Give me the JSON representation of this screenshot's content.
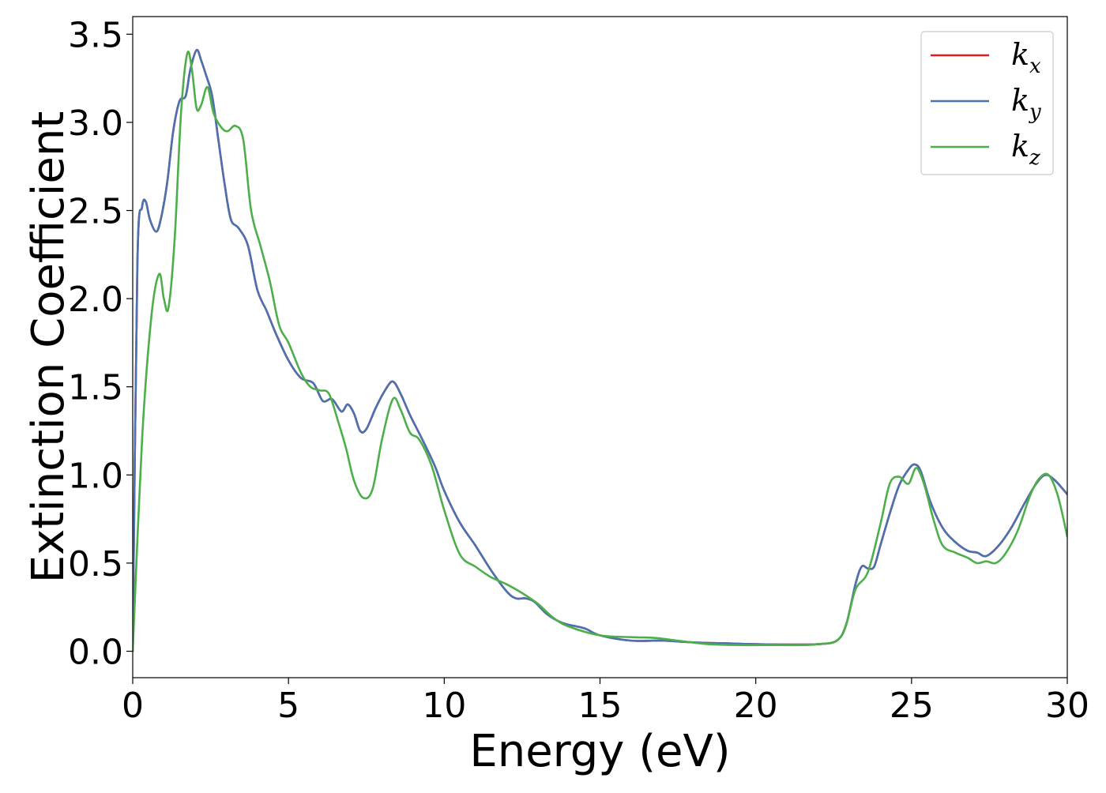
{
  "chart_data": {
    "type": "line",
    "xlabel": "Energy (eV)",
    "ylabel": "Extinction Coefficient",
    "xlim": [
      0,
      30
    ],
    "ylim": [
      -0.15,
      3.6
    ],
    "xticks": [
      0,
      5,
      10,
      15,
      20,
      25,
      30
    ],
    "xtick_labels": [
      "0",
      "5",
      "10",
      "15",
      "20",
      "25",
      "30"
    ],
    "yticks": [
      0.0,
      0.5,
      1.0,
      1.5,
      2.0,
      2.5,
      3.0,
      3.5
    ],
    "ytick_labels": [
      "0.0",
      "0.5",
      "1.0",
      "1.5",
      "2.0",
      "2.5",
      "3.0",
      "3.5"
    ],
    "grid": false,
    "legend_position": "top-right",
    "series": [
      {
        "name": "k",
        "subscript": "x",
        "color": "#e41a1c",
        "x": [
          0,
          0.15,
          0.3,
          0.42,
          0.55,
          0.75,
          0.9,
          1.1,
          1.3,
          1.5,
          1.7,
          1.85,
          2.05,
          2.2,
          2.35,
          2.55,
          2.75,
          2.95,
          3.15,
          3.4,
          3.7,
          4.0,
          4.3,
          4.6,
          5.0,
          5.4,
          5.8,
          6.1,
          6.4,
          6.7,
          6.9,
          7.1,
          7.3,
          7.5,
          7.8,
          8.1,
          8.35,
          8.6,
          8.9,
          9.3,
          9.7,
          10.0,
          10.5,
          11.0,
          11.5,
          12.0,
          12.3,
          12.6,
          12.9,
          13.3,
          13.8,
          14.5,
          15.0,
          16.0,
          17.0,
          18.0,
          19.0,
          20.0,
          21.0,
          22.0,
          22.6,
          22.9,
          23.2,
          23.4,
          23.6,
          23.8,
          24.0,
          24.3,
          24.6,
          24.9,
          25.1,
          25.3,
          25.6,
          26.0,
          26.4,
          26.8,
          27.1,
          27.4,
          27.8,
          28.2,
          28.6,
          29.0,
          29.3,
          29.6,
          30.0
        ],
        "values": [
          0.0,
          2.2,
          2.52,
          2.55,
          2.45,
          2.38,
          2.45,
          2.65,
          2.95,
          3.12,
          3.15,
          3.3,
          3.41,
          3.35,
          3.27,
          3.15,
          2.9,
          2.65,
          2.45,
          2.4,
          2.3,
          2.05,
          1.93,
          1.8,
          1.65,
          1.55,
          1.52,
          1.42,
          1.43,
          1.36,
          1.4,
          1.35,
          1.25,
          1.26,
          1.38,
          1.48,
          1.53,
          1.46,
          1.34,
          1.2,
          1.05,
          0.91,
          0.73,
          0.6,
          0.46,
          0.34,
          0.3,
          0.3,
          0.28,
          0.21,
          0.16,
          0.13,
          0.09,
          0.06,
          0.06,
          0.05,
          0.045,
          0.04,
          0.038,
          0.04,
          0.06,
          0.15,
          0.38,
          0.48,
          0.47,
          0.48,
          0.6,
          0.78,
          0.94,
          1.03,
          1.06,
          1.02,
          0.85,
          0.7,
          0.62,
          0.57,
          0.56,
          0.54,
          0.6,
          0.7,
          0.83,
          0.95,
          1.0,
          0.97,
          0.89
        ]
      },
      {
        "name": "k",
        "subscript": "y",
        "color": "#4a72b0",
        "x": [
          0,
          0.15,
          0.3,
          0.42,
          0.55,
          0.75,
          0.9,
          1.1,
          1.3,
          1.5,
          1.7,
          1.85,
          2.05,
          2.2,
          2.35,
          2.55,
          2.75,
          2.95,
          3.15,
          3.4,
          3.7,
          4.0,
          4.3,
          4.6,
          5.0,
          5.4,
          5.8,
          6.1,
          6.4,
          6.7,
          6.9,
          7.1,
          7.3,
          7.5,
          7.8,
          8.1,
          8.35,
          8.6,
          8.9,
          9.3,
          9.7,
          10.0,
          10.5,
          11.0,
          11.5,
          12.0,
          12.3,
          12.6,
          12.9,
          13.3,
          13.8,
          14.5,
          15.0,
          16.0,
          17.0,
          18.0,
          19.0,
          20.0,
          21.0,
          22.0,
          22.6,
          22.9,
          23.2,
          23.4,
          23.6,
          23.8,
          24.0,
          24.3,
          24.6,
          24.9,
          25.1,
          25.3,
          25.6,
          26.0,
          26.4,
          26.8,
          27.1,
          27.4,
          27.8,
          28.2,
          28.6,
          29.0,
          29.3,
          29.6,
          30.0
        ],
        "values": [
          0.0,
          2.2,
          2.52,
          2.55,
          2.45,
          2.38,
          2.45,
          2.65,
          2.95,
          3.12,
          3.15,
          3.3,
          3.41,
          3.35,
          3.27,
          3.15,
          2.9,
          2.65,
          2.45,
          2.4,
          2.3,
          2.05,
          1.93,
          1.8,
          1.65,
          1.55,
          1.52,
          1.42,
          1.43,
          1.36,
          1.4,
          1.35,
          1.25,
          1.26,
          1.38,
          1.48,
          1.53,
          1.46,
          1.34,
          1.2,
          1.05,
          0.91,
          0.73,
          0.6,
          0.46,
          0.34,
          0.3,
          0.3,
          0.28,
          0.21,
          0.16,
          0.13,
          0.09,
          0.06,
          0.06,
          0.05,
          0.045,
          0.04,
          0.038,
          0.04,
          0.06,
          0.15,
          0.38,
          0.48,
          0.47,
          0.48,
          0.6,
          0.78,
          0.94,
          1.03,
          1.06,
          1.02,
          0.85,
          0.7,
          0.62,
          0.57,
          0.56,
          0.54,
          0.6,
          0.7,
          0.83,
          0.95,
          1.0,
          0.97,
          0.89
        ]
      },
      {
        "name": "k",
        "subscript": "z",
        "color": "#4daf4a",
        "x": [
          0,
          0.3,
          0.6,
          0.85,
          1.0,
          1.15,
          1.35,
          1.55,
          1.75,
          1.9,
          2.05,
          2.2,
          2.4,
          2.6,
          2.85,
          3.05,
          3.3,
          3.55,
          3.8,
          4.1,
          4.4,
          4.7,
          5.0,
          5.4,
          5.7,
          6.0,
          6.3,
          6.6,
          6.85,
          7.1,
          7.4,
          7.7,
          8.0,
          8.35,
          8.6,
          8.9,
          9.2,
          9.6,
          10.0,
          10.5,
          11.0,
          11.5,
          12.0,
          12.5,
          13.0,
          13.5,
          14.0,
          15.0,
          16.0,
          16.8,
          17.5,
          18.5,
          19.5,
          20.5,
          21.5,
          22.0,
          22.6,
          22.9,
          23.2,
          23.6,
          24.0,
          24.3,
          24.6,
          24.9,
          25.15,
          25.4,
          25.7,
          26.0,
          26.4,
          26.8,
          27.1,
          27.4,
          27.7,
          28.0,
          28.4,
          28.8,
          29.1,
          29.4,
          29.7,
          30.0
        ],
        "values": [
          0.0,
          1.2,
          1.9,
          2.14,
          2.0,
          1.95,
          2.35,
          3.05,
          3.39,
          3.3,
          3.08,
          3.1,
          3.2,
          3.05,
          2.97,
          2.95,
          2.98,
          2.9,
          2.5,
          2.3,
          2.1,
          1.85,
          1.75,
          1.58,
          1.5,
          1.48,
          1.46,
          1.3,
          1.15,
          0.97,
          0.87,
          0.92,
          1.2,
          1.43,
          1.37,
          1.24,
          1.2,
          1.05,
          0.8,
          0.55,
          0.48,
          0.42,
          0.38,
          0.33,
          0.27,
          0.19,
          0.14,
          0.09,
          0.08,
          0.075,
          0.06,
          0.04,
          0.035,
          0.035,
          0.035,
          0.04,
          0.06,
          0.15,
          0.35,
          0.45,
          0.72,
          0.95,
          0.99,
          0.95,
          1.04,
          0.95,
          0.75,
          0.6,
          0.56,
          0.53,
          0.5,
          0.51,
          0.5,
          0.55,
          0.68,
          0.88,
          0.98,
          1.0,
          0.88,
          0.65
        ]
      }
    ]
  }
}
